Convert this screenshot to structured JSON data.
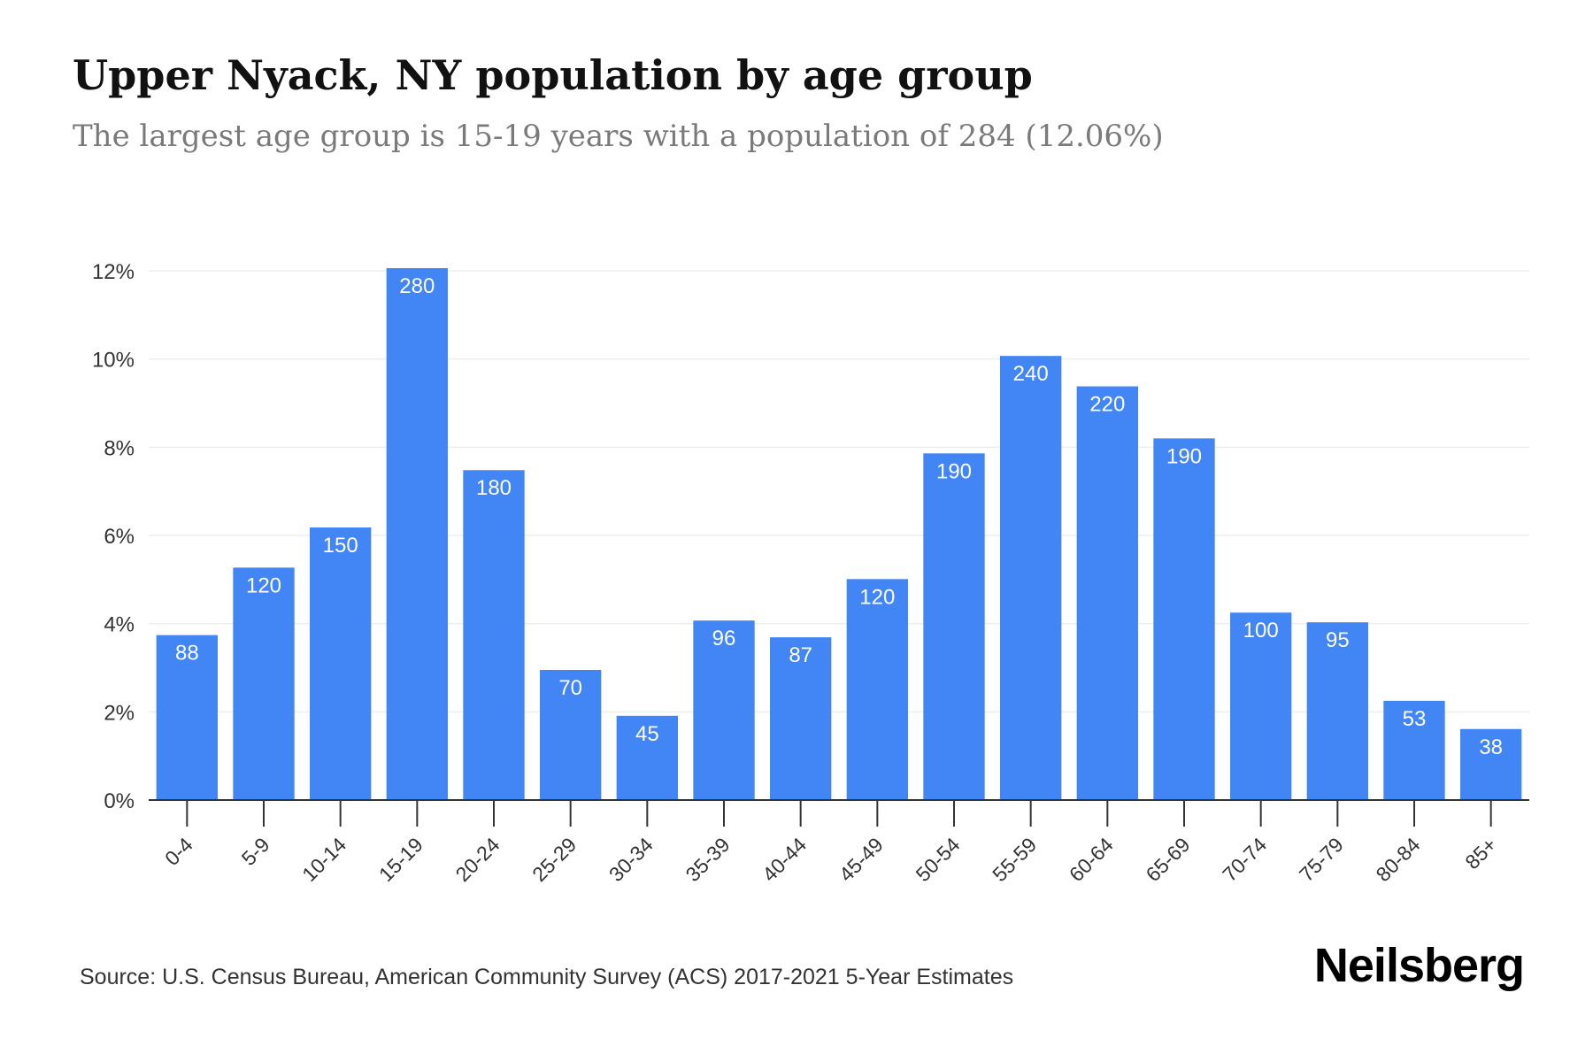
{
  "header": {
    "title": "Upper Nyack, NY population by age group",
    "subtitle": "The largest age group is 15-19 years with a population of 284 (12.06%)"
  },
  "footer": {
    "source": "Source: U.S. Census Bureau, American Community Survey (ACS) 2017-2021 5-Year Estimates",
    "brand": "Neilsberg"
  },
  "colors": {
    "bar": "#4285f4",
    "bar_label": "#ffffff",
    "grid": "#eeeeee",
    "axis": "#333333",
    "tick_text": "#333333"
  },
  "chart_data": {
    "type": "bar",
    "title": "Upper Nyack, NY population by age group",
    "subtitle": "The largest age group is 15-19 years with a population of 284 (12.06%)",
    "xlabel": "",
    "ylabel": "",
    "categories": [
      "0-4",
      "5-9",
      "10-14",
      "15-19",
      "20-24",
      "25-29",
      "30-34",
      "35-39",
      "40-44",
      "45-49",
      "50-54",
      "55-59",
      "60-64",
      "65-69",
      "70-74",
      "75-79",
      "80-84",
      "85+"
    ],
    "values_percent": [
      3.74,
      5.27,
      6.18,
      12.06,
      7.48,
      2.95,
      1.91,
      4.07,
      3.69,
      5.01,
      7.86,
      10.07,
      9.38,
      8.2,
      4.25,
      4.03,
      2.25,
      1.61
    ],
    "data_labels": [
      "88",
      "120",
      "150",
      "280",
      "180",
      "70",
      "45",
      "96",
      "87",
      "120",
      "190",
      "240",
      "220",
      "190",
      "100",
      "95",
      "53",
      "38"
    ],
    "y_ticks": [
      0,
      2,
      4,
      6,
      8,
      10,
      12
    ],
    "y_tick_labels": [
      "0%",
      "2%",
      "4%",
      "6%",
      "8%",
      "10%",
      "12%"
    ],
    "ylim": [
      0,
      12
    ],
    "grid": true,
    "legend": "none"
  }
}
